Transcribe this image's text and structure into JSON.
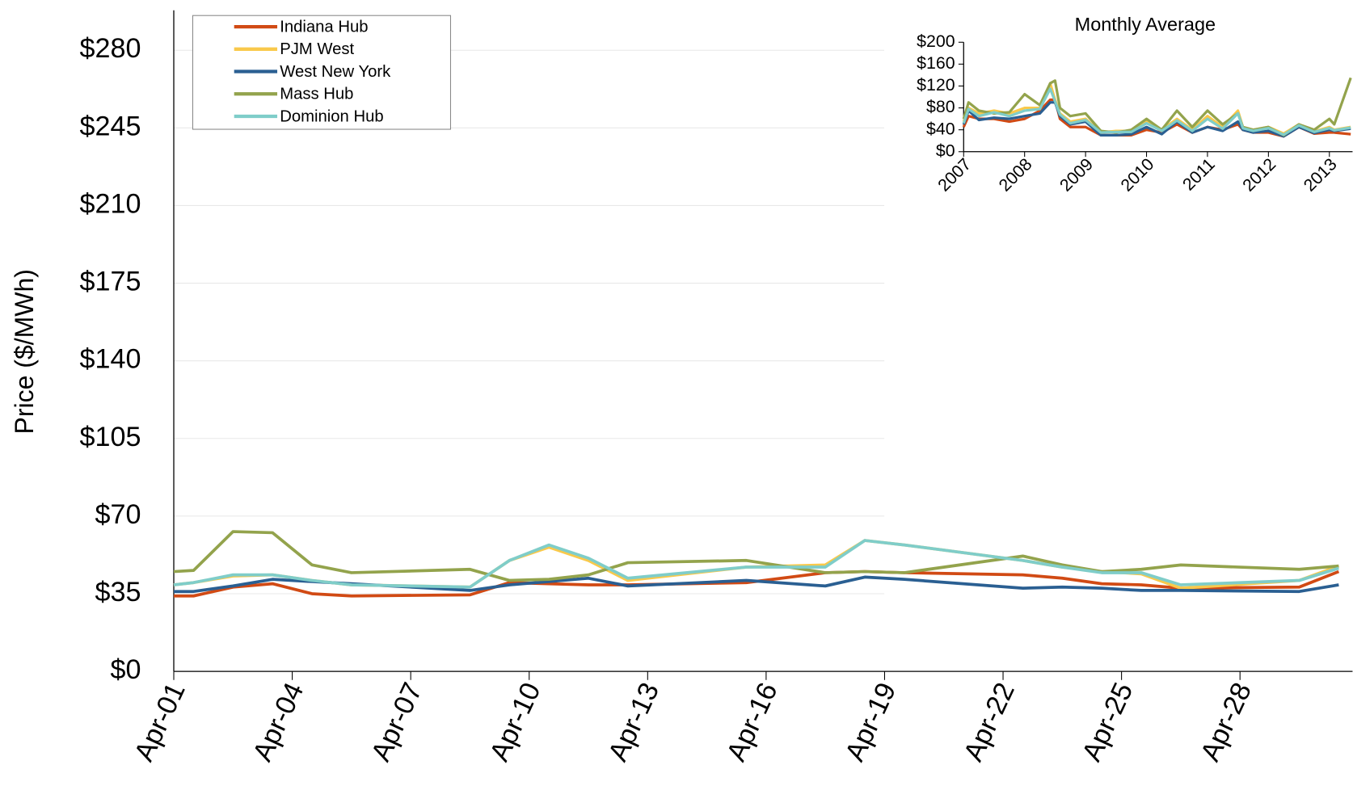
{
  "chart_data": [
    {
      "type": "line",
      "y_label": "Price ($/MWh)",
      "x": [
        1,
        1.5,
        2.5,
        3.5,
        4.5,
        5.5,
        8.5,
        9.5,
        10.5,
        11.5,
        12.5,
        15.5,
        17.5,
        18.5,
        19.5,
        22.5,
        23.5,
        24.5,
        25.5,
        26.5,
        29.5,
        30.5
      ],
      "xlim": [
        1,
        30.85
      ],
      "xticks": [
        {
          "value": 1,
          "label": "Apr-01"
        },
        {
          "value": 4,
          "label": "Apr-04"
        },
        {
          "value": 7,
          "label": "Apr-07"
        },
        {
          "value": 10,
          "label": "Apr-10"
        },
        {
          "value": 13,
          "label": "Apr-13"
        },
        {
          "value": 16,
          "label": "Apr-16"
        },
        {
          "value": 19,
          "label": "Apr-19"
        },
        {
          "value": 22,
          "label": "Apr-22"
        },
        {
          "value": 25,
          "label": "Apr-25"
        },
        {
          "value": 28,
          "label": "Apr-28"
        }
      ],
      "ylim": [
        0,
        298
      ],
      "yticks": [
        {
          "value": 0,
          "label": "$0"
        },
        {
          "value": 35,
          "label": "$35"
        },
        {
          "value": 70,
          "label": "$70"
        },
        {
          "value": 105,
          "label": "$105"
        },
        {
          "value": 140,
          "label": "$140"
        },
        {
          "value": 175,
          "label": "$175"
        },
        {
          "value": 210,
          "label": "$210"
        },
        {
          "value": 245,
          "label": "$245"
        },
        {
          "value": 280,
          "label": "$280"
        }
      ],
      "grid": true,
      "legend": "upper left",
      "series": [
        {
          "name": "Indiana Hub",
          "color": "#d14a14",
          "values": [
            34,
            34,
            38,
            39.5,
            35,
            34,
            34.5,
            40,
            39.5,
            39,
            39,
            40,
            44.5,
            45,
            44.5,
            43.5,
            42,
            39.5,
            39,
            37.5,
            38,
            45
          ]
        },
        {
          "name": "PJM West",
          "color": "#f9c94b",
          "values": [
            39,
            40,
            43,
            43.5,
            41,
            39,
            38,
            50,
            56,
            50,
            41,
            47,
            48,
            59,
            57,
            50,
            47,
            45,
            44,
            37.5,
            41,
            47.5
          ]
        },
        {
          "name": "West New York",
          "color": "#2a5f92",
          "values": [
            36,
            36,
            38.5,
            41.5,
            40.5,
            39.5,
            36.5,
            39,
            40.5,
            42,
            38.5,
            41,
            38.5,
            42.5,
            41.5,
            37.5,
            38,
            37.5,
            36.5,
            36.5,
            36,
            39
          ]
        },
        {
          "name": "Mass Hub",
          "color": "#93a34c",
          "values": [
            45,
            45.5,
            63,
            62.5,
            48,
            44.5,
            46,
            41,
            41.5,
            43.5,
            49,
            50,
            44.5,
            45,
            44.5,
            52,
            48,
            45,
            46,
            48,
            46,
            47.5
          ]
        },
        {
          "name": "Dominion Hub",
          "color": "#7fcdc9",
          "values": [
            39,
            40,
            43.5,
            43.5,
            41,
            39,
            38,
            50,
            57,
            51,
            42,
            47,
            47,
            59,
            57,
            50,
            47,
            44.5,
            44.5,
            39,
            41,
            46.5
          ]
        }
      ]
    },
    {
      "type": "line",
      "title": "Monthly Average",
      "x": [
        2007,
        2007.08,
        2007.25,
        2007.5,
        2007.75,
        2008,
        2008.25,
        2008.42,
        2008.5,
        2008.58,
        2008.75,
        2009,
        2009.25,
        2009.5,
        2009.75,
        2010,
        2010.25,
        2010.5,
        2010.75,
        2011,
        2011.25,
        2011.5,
        2011.58,
        2011.75,
        2012,
        2012.25,
        2012.5,
        2012.75,
        2013,
        2013.08,
        2013.35
      ],
      "xlim": [
        2007,
        2013.38
      ],
      "xticks": [
        2007,
        2008,
        2009,
        2010,
        2011,
        2012,
        2013
      ],
      "ylim": [
        0,
        200
      ],
      "yticks": [
        {
          "value": 0,
          "label": "$0"
        },
        {
          "value": 40,
          "label": "$40"
        },
        {
          "value": 80,
          "label": "$80"
        },
        {
          "value": 120,
          "label": "$120"
        },
        {
          "value": 160,
          "label": "$160"
        },
        {
          "value": 200,
          "label": "$200"
        }
      ],
      "grid": false,
      "series": [
        {
          "color": "#d14a14",
          "values": [
            45,
            65,
            60,
            60,
            55,
            60,
            75,
            95,
            95,
            60,
            45,
            45,
            30,
            30,
            30,
            40,
            35,
            50,
            35,
            45,
            40,
            50,
            40,
            35,
            35,
            28,
            45,
            33,
            35,
            35,
            32
          ]
        },
        {
          "color": "#f9c94b",
          "values": [
            55,
            80,
            70,
            75,
            70,
            80,
            80,
            125,
            95,
            70,
            55,
            60,
            35,
            38,
            38,
            55,
            40,
            60,
            40,
            65,
            45,
            75,
            45,
            40,
            45,
            33,
            50,
            37,
            45,
            40,
            45
          ]
        },
        {
          "color": "#2a5f92",
          "values": [
            50,
            75,
            58,
            62,
            60,
            65,
            70,
            90,
            90,
            65,
            50,
            55,
            30,
            30,
            32,
            45,
            32,
            55,
            35,
            45,
            38,
            55,
            40,
            35,
            38,
            28,
            45,
            34,
            40,
            38,
            42
          ]
        },
        {
          "color": "#93a34c",
          "values": [
            60,
            90,
            75,
            70,
            72,
            105,
            85,
            125,
            130,
            80,
            65,
            70,
            38,
            35,
            40,
            60,
            40,
            75,
            45,
            75,
            50,
            70,
            45,
            40,
            45,
            30,
            50,
            40,
            60,
            50,
            135
          ]
        },
        {
          "color": "#7fcdc9",
          "values": [
            52,
            78,
            65,
            72,
            65,
            75,
            78,
            115,
            92,
            68,
            52,
            58,
            35,
            36,
            36,
            52,
            38,
            57,
            38,
            60,
            42,
            70,
            43,
            38,
            43,
            31,
            48,
            36,
            43,
            39,
            44
          ]
        }
      ]
    }
  ]
}
